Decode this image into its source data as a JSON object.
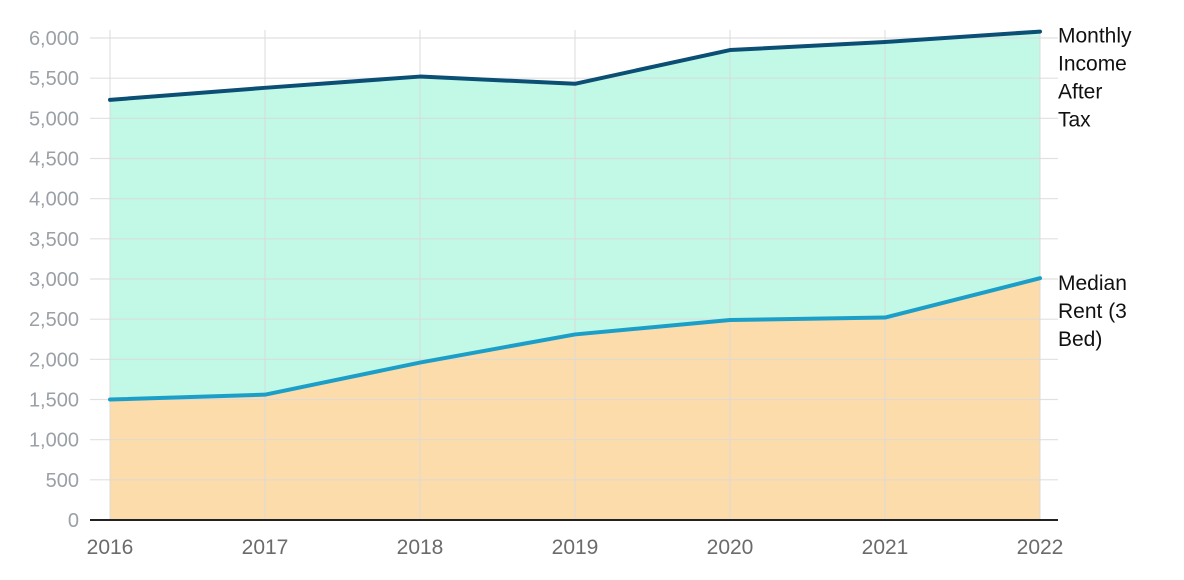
{
  "chart_data": {
    "type": "area",
    "title": "",
    "xlabel": "",
    "ylabel": "",
    "x": [
      "2016",
      "2017",
      "2018",
      "2019",
      "2020",
      "2021",
      "2022"
    ],
    "ylim": [
      0,
      6000
    ],
    "yticks": [
      "0",
      "500",
      "1,000",
      "1,500",
      "2,000",
      "2,500",
      "3,000",
      "3,500",
      "4,000",
      "4,500",
      "5,000",
      "5,500",
      "6,000"
    ],
    "grid": true,
    "series": [
      {
        "name": "Monthly Income After Tax",
        "label_lines": [
          "Monthly",
          "Income",
          "After",
          "Tax"
        ],
        "values": [
          5230,
          5380,
          5520,
          5430,
          5850,
          5950,
          6080
        ],
        "line_color": "#0b4f75",
        "fill_color": "#c2f8e6"
      },
      {
        "name": "Median Rent (3 Bed)",
        "label_lines": [
          "Median",
          "Rent (3",
          "Bed)"
        ],
        "values": [
          1500,
          1560,
          1960,
          2310,
          2490,
          2520,
          3010
        ],
        "line_color": "#1b9fc8",
        "fill_color": "#fddcab"
      }
    ]
  }
}
